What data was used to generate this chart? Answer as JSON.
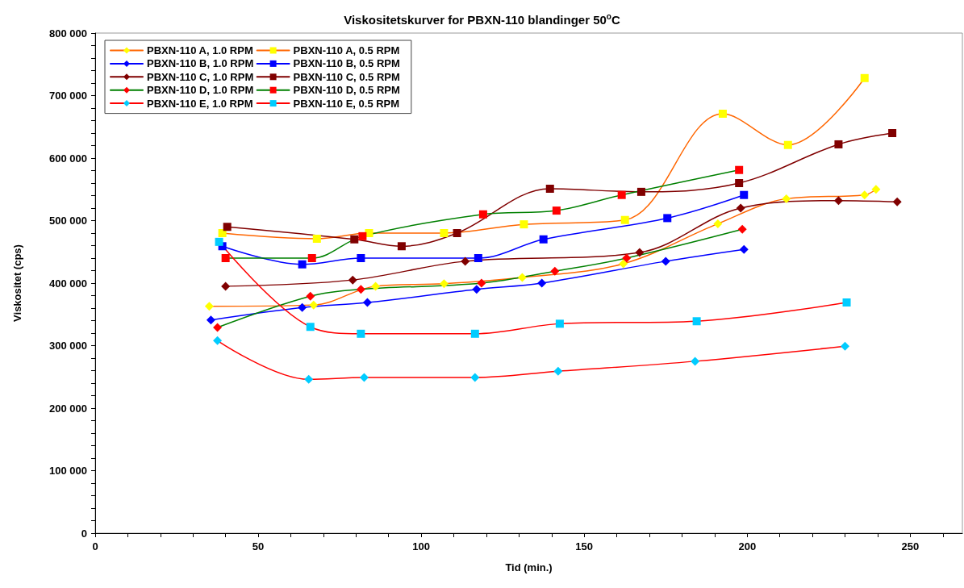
{
  "chart_data": {
    "type": "line",
    "title": "Viskositetskurver for PBXN-110 blandinger 50$^{o}$C",
    "xlabel": "Tid (min.)",
    "ylabel": "Viskositet (cps)",
    "xlim": [
      0,
      266
    ],
    "xticks": [
      0,
      {
        "value": 10,
        "label": null
      },
      {
        "value": 20,
        "label": null
      },
      {
        "value": 30,
        "label": null
      },
      {
        "value": 40,
        "label": null
      },
      50,
      {
        "value": 60,
        "label": null
      },
      {
        "value": 70,
        "label": null
      },
      {
        "value": 80,
        "label": null
      },
      {
        "value": 90,
        "label": null
      },
      100,
      {
        "value": 110,
        "label": null
      },
      {
        "value": 120,
        "label": null
      },
      {
        "value": 130,
        "label": null
      },
      {
        "value": 140,
        "label": null
      },
      150,
      {
        "value": 160,
        "label": null
      },
      {
        "value": 170,
        "label": null
      },
      {
        "value": 180,
        "label": null
      },
      {
        "value": 190,
        "label": null
      },
      200,
      {
        "value": 210,
        "label": null
      },
      {
        "value": 220,
        "label": null
      },
      {
        "value": 230,
        "label": null
      },
      {
        "value": 240,
        "label": null
      },
      250,
      {
        "value": 260,
        "label": null
      }
    ],
    "ylim": [
      0,
      800000
    ],
    "yticks": [
      0,
      {
        "value": 20000,
        "label": null
      },
      {
        "value": 40000,
        "label": null
      },
      {
        "value": 60000,
        "label": null
      },
      {
        "value": 80000,
        "label": null
      },
      {
        "value": 100000,
        "label": "100 000"
      },
      {
        "value": 120000,
        "label": null
      },
      {
        "value": 140000,
        "label": null
      },
      {
        "value": 160000,
        "label": null
      },
      {
        "value": 180000,
        "label": null
      },
      {
        "value": 200000,
        "label": "200 000"
      },
      {
        "value": 220000,
        "label": null
      },
      {
        "value": 240000,
        "label": null
      },
      {
        "value": 260000,
        "label": null
      },
      {
        "value": 280000,
        "label": null
      },
      {
        "value": 300000,
        "label": "300 000"
      },
      {
        "value": 320000,
        "label": null
      },
      {
        "value": 340000,
        "label": null
      },
      {
        "value": 360000,
        "label": null
      },
      {
        "value": 380000,
        "label": null
      },
      {
        "value": 400000,
        "label": "400 000"
      },
      {
        "value": 420000,
        "label": null
      },
      {
        "value": 440000,
        "label": null
      },
      {
        "value": 460000,
        "label": null
      },
      {
        "value": 480000,
        "label": null
      },
      {
        "value": 500000,
        "label": "500 000"
      },
      {
        "value": 520000,
        "label": null
      },
      {
        "value": 540000,
        "label": null
      },
      {
        "value": 560000,
        "label": null
      },
      {
        "value": 580000,
        "label": null
      },
      {
        "value": 600000,
        "label": "600 000"
      },
      {
        "value": 620000,
        "label": null
      },
      {
        "value": 640000,
        "label": null
      },
      {
        "value": 660000,
        "label": null
      },
      {
        "value": 680000,
        "label": null
      },
      {
        "value": 700000,
        "label": "700 000"
      },
      {
        "value": 720000,
        "label": null
      },
      {
        "value": 740000,
        "label": null
      },
      {
        "value": 760000,
        "label": null
      },
      {
        "value": 780000,
        "label": null
      },
      {
        "value": 800000,
        "label": "800 000"
      }
    ],
    "grid": false,
    "legend": "top left",
    "series": [
      {
        "name": "PBXN-110 A, 1.0 RPM",
        "marker": "diamond",
        "color": "#ff6600",
        "colors": [
          "#ffff00",
          "#ffff00",
          "#ffff00",
          "#ffff00",
          "#ffff00",
          "#ffff00",
          "#ffff00",
          "#ffff00",
          "#ffff00",
          "#ffff00"
        ],
        "x": [
          35,
          67,
          86,
          107,
          131,
          162,
          191,
          212,
          236,
          239.5
        ],
        "values": [
          363000,
          365000,
          395000,
          399000,
          409000,
          431000,
          495000,
          535000,
          541000,
          550000
        ]
      },
      {
        "name": "PBXN-110 B, 1.0 RPM",
        "marker": "diamond",
        "color": "#0000ff",
        "colors": [
          "#0000ff",
          "#0000ff",
          "#0000ff",
          "#0000ff",
          "#0000ff",
          "#0000ff",
          "#0000ff"
        ],
        "x": [
          35.5,
          63.5,
          83.5,
          117,
          137,
          175,
          199
        ],
        "values": [
          341000,
          361000,
          369000,
          390000,
          400000,
          435000,
          454000
        ]
      },
      {
        "name": "PBXN-110 C, 1.0 RPM",
        "marker": "diamond",
        "color": "#800000",
        "colors": [
          "#800000",
          "#800000",
          "#800000",
          "#800000",
          "#800000",
          "#800000",
          "#800000"
        ],
        "x": [
          40,
          79,
          113.5,
          167,
          198,
          228,
          246
        ],
        "values": [
          395000,
          405000,
          435000,
          449000,
          520000,
          532000,
          530000
        ]
      },
      {
        "name": "PBXN-110 D, 1.0 RPM",
        "marker": "diamond",
        "color": "#008000",
        "colors": [
          "#ff0000",
          "#ff0000",
          "#ff0000",
          "#ff0000",
          "#ff0000",
          "#ff0000",
          "#ff0000"
        ],
        "x": [
          37.5,
          66,
          81.5,
          118.5,
          141,
          163,
          198.5
        ],
        "values": [
          329000,
          379000,
          390000,
          400000,
          419000,
          440000,
          486000
        ]
      },
      {
        "name": "PBXN-110 E, 1.0 RPM",
        "marker": "diamond",
        "color": "#ff0000",
        "colors": [
          "#00ccff",
          "#00ccff",
          "#00ccff",
          "#00ccff",
          "#00ccff",
          "#00ccff",
          "#00ccff"
        ],
        "x": [
          37.5,
          65.5,
          82.5,
          116.5,
          142,
          184,
          230
        ],
        "values": [
          308000,
          246000,
          249000,
          249000,
          259000,
          275000,
          299000
        ]
      },
      {
        "name": "PBXN-110 A, 0.5 RPM",
        "marker": "square",
        "color": "#ff6600",
        "colors": [
          "#ffff00",
          "#ffff00",
          "#ffff00",
          "#ffff00",
          "#ffff00",
          "#ffff00",
          "#ffff00",
          "#ffff00",
          "#ffff00"
        ],
        "x": [
          39,
          68,
          84,
          107,
          131.5,
          162.5,
          192.5,
          212.5,
          236
        ],
        "values": [
          480000,
          471000,
          480000,
          480000,
          494000,
          501000,
          671000,
          621000,
          728000
        ]
      },
      {
        "name": "PBXN-110 B, 0.5 RPM",
        "marker": "square",
        "color": "#0000ff",
        "colors": [
          "#0000ff",
          "#0000ff",
          "#0000ff",
          "#0000ff",
          "#0000ff",
          "#0000ff",
          "#0000ff"
        ],
        "x": [
          39,
          63.5,
          81.5,
          117.5,
          137.5,
          175.5,
          199
        ],
        "values": [
          459000,
          430000,
          440000,
          440000,
          470000,
          504000,
          541000
        ]
      },
      {
        "name": "PBXN-110 C, 0.5 RPM",
        "marker": "square",
        "color": "#800000",
        "colors": [
          "#800000",
          "#800000",
          "#800000",
          "#800000",
          "#800000",
          "#800000",
          "#800000",
          "#800000",
          "#800000"
        ],
        "x": [
          40.5,
          79.5,
          94,
          111,
          139.5,
          167.5,
          197.5,
          228,
          244.5
        ],
        "values": [
          490000,
          470000,
          459000,
          480000,
          551000,
          546000,
          560000,
          622000,
          640000
        ]
      },
      {
        "name": "PBXN-110 D, 0.5 RPM",
        "marker": "square",
        "color": "#008000",
        "colors": [
          "#ff0000",
          "#ff0000",
          "#ff0000",
          "#ff0000",
          "#ff0000",
          "#ff0000",
          "#ff0000"
        ],
        "x": [
          40,
          66.5,
          82,
          119,
          141.5,
          161.5,
          197.5
        ],
        "values": [
          440000,
          440000,
          475000,
          510000,
          516000,
          541000,
          581000
        ]
      },
      {
        "name": "PBXN-110 E, 0.5 RPM",
        "marker": "square",
        "color": "#ff0000",
        "colors": [
          "#00ccff",
          "#00ccff",
          "#00ccff",
          "#00ccff",
          "#00ccff",
          "#00ccff",
          "#00ccff"
        ],
        "x": [
          38,
          66,
          81.5,
          116.5,
          142.5,
          184.5,
          230.5
        ],
        "values": [
          466000,
          330000,
          319000,
          319000,
          335000,
          339000,
          369000
        ]
      }
    ]
  }
}
